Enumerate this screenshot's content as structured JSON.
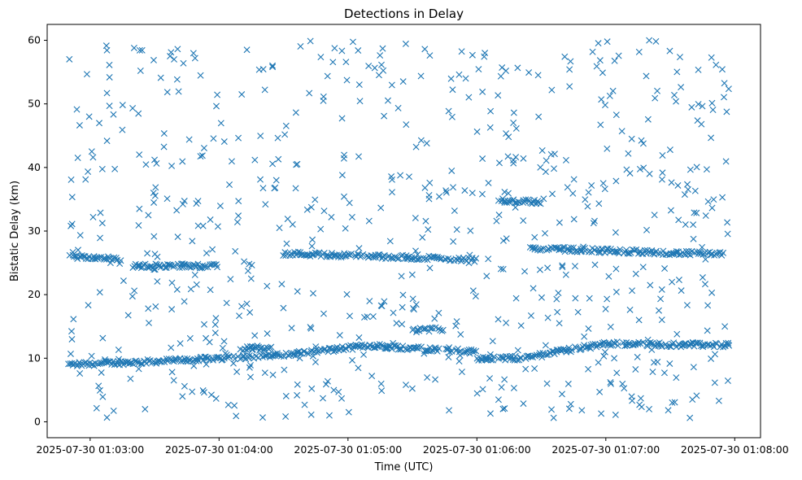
{
  "chart_data": {
    "type": "scatter",
    "title": "Detections in Delay",
    "xlabel": "Time (UTC)",
    "ylabel": "Bistatic Delay (km)",
    "x_ticks": [
      "2025-07-30 01:03:00",
      "2025-07-30 01:04:00",
      "2025-07-30 01:05:00",
      "2025-07-30 01:06:00",
      "2025-07-30 01:07:00",
      "2025-07-30 01:08:00"
    ],
    "y_ticks": [
      "0",
      "10",
      "20",
      "30",
      "40",
      "50",
      "60"
    ],
    "xlim": [
      "2025-07-30 01:02:40",
      "2025-07-30 01:08:12"
    ],
    "ylim": [
      -2.5,
      62.5
    ],
    "grid": false,
    "marker": "x",
    "color": "#1f77b4",
    "time_start": "2025-07-30 01:02:50",
    "time_end": "2025-07-30 01:07:58",
    "delay_min_km": 0.5,
    "delay_max_km": 60,
    "tracks": [
      {
        "t": [
          "01:02:50",
          "01:03:30",
          "01:04:30",
          "01:05:10",
          "01:06:00"
        ],
        "delay_km": [
          9.0,
          9.5,
          10.5,
          12.0,
          11.0
        ]
      },
      {
        "t": [
          "01:06:00",
          "01:06:20",
          "01:07:00",
          "01:07:58"
        ],
        "delay_km": [
          10.0,
          10.0,
          12.3,
          12.0
        ]
      },
      {
        "t": [
          "01:02:50",
          "01:03:15"
        ],
        "delay_km": [
          26.0,
          25.5
        ]
      },
      {
        "t": [
          "01:03:20",
          "01:04:00"
        ],
        "delay_km": [
          24.5,
          24.5
        ]
      },
      {
        "t": [
          "01:04:30",
          "01:06:00"
        ],
        "delay_km": [
          26.5,
          25.5
        ]
      },
      {
        "t": [
          "01:06:25",
          "01:07:55"
        ],
        "delay_km": [
          27.3,
          26.3
        ]
      },
      {
        "t": [
          "01:06:10",
          "01:06:30"
        ],
        "delay_km": [
          34.8,
          34.6
        ]
      },
      {
        "t": [
          "01:04:10",
          "01:04:25"
        ],
        "delay_km": [
          11.5,
          11.5
        ]
      },
      {
        "t": [
          "01:05:30",
          "01:05:45"
        ],
        "delay_km": [
          14.5,
          14.5
        ]
      }
    ],
    "clutter_points": 700
  }
}
